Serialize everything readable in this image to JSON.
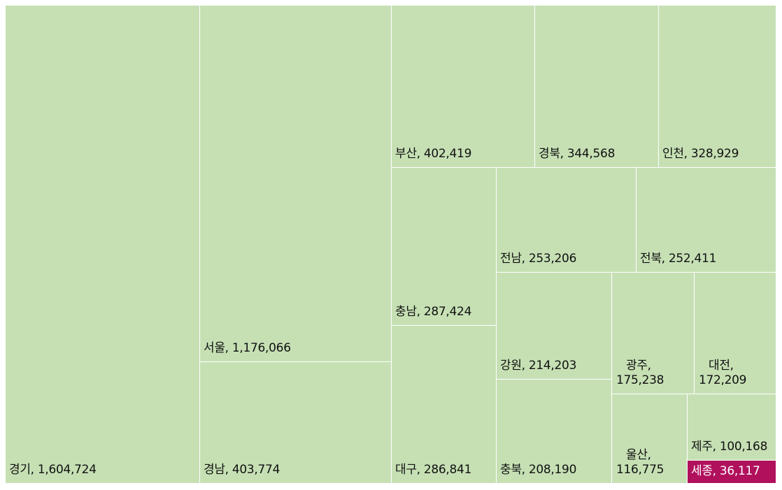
{
  "chart_data": {
    "type": "treemap",
    "title": "",
    "legend": "none",
    "colors": {
      "default": "#c6e0b4",
      "highlight": "#b0105c",
      "highlight_text": "#ffffff",
      "text": "#111111",
      "border": "#ffffff"
    },
    "items": [
      {
        "name": "경기",
        "value": 1604724,
        "label": "경기, 1,604,724"
      },
      {
        "name": "서울",
        "value": 1176066,
        "label": "서울, 1,176,066"
      },
      {
        "name": "경남",
        "value": 403774,
        "label": "경남, 403,774"
      },
      {
        "name": "부산",
        "value": 402419,
        "label": "부산, 402,419"
      },
      {
        "name": "경북",
        "value": 344568,
        "label": "경북, 344,568"
      },
      {
        "name": "인천",
        "value": 328929,
        "label": "인천, 328,929"
      },
      {
        "name": "충남",
        "value": 287424,
        "label": "충남, 287,424"
      },
      {
        "name": "대구",
        "value": 286841,
        "label": "대구, 286,841"
      },
      {
        "name": "전남",
        "value": 253206,
        "label": "전남, 253,206"
      },
      {
        "name": "전북",
        "value": 252411,
        "label": "전북, 252,411"
      },
      {
        "name": "강원",
        "value": 214203,
        "label": "강원, 214,203"
      },
      {
        "name": "충북",
        "value": 208190,
        "label": "충북, 208,190"
      },
      {
        "name": "광주",
        "value": 175238,
        "label": "광주, 175,238"
      },
      {
        "name": "대전",
        "value": 172209,
        "label": "대전, 172,209"
      },
      {
        "name": "울산",
        "value": 116775,
        "label": "울산, 116,775"
      },
      {
        "name": "제주",
        "value": 100168,
        "label": "제주, 100,168"
      },
      {
        "name": "세종",
        "value": 36117,
        "label": "세종, 36,117",
        "highlight": true
      }
    ]
  }
}
